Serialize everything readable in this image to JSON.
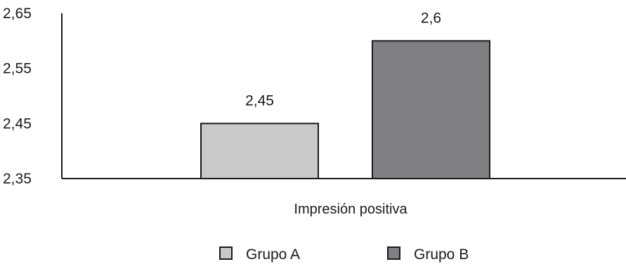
{
  "chart_data": {
    "type": "bar",
    "categories": [
      "Impresión positiva"
    ],
    "series": [
      {
        "name": "Grupo A",
        "values": [
          2.45
        ],
        "value_label": "2,45",
        "color": "#c8c9cb"
      },
      {
        "name": "Grupo B",
        "values": [
          2.6
        ],
        "value_label": "2,6",
        "color": "#7f8083"
      }
    ],
    "xlabel": "Impresión positiva",
    "ylabel": "",
    "ylim": [
      2.35,
      2.65
    ],
    "yticks": [
      2.35,
      2.45,
      2.55,
      2.65
    ],
    "ytick_labels": [
      "2,35",
      "2,45",
      "2,55",
      "2,65"
    ],
    "grid": false,
    "legend_position": "bottom-center"
  }
}
